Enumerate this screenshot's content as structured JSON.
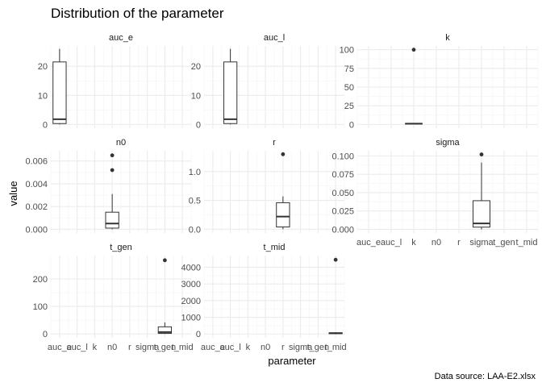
{
  "chart_data": {
    "type": "boxplot",
    "title": "Distribution of the parameter",
    "xlabel": "parameter",
    "ylabel": "value",
    "caption": "Data source: LAA-E2.xlsx",
    "categories": [
      "auc_e",
      "auc_l",
      "k",
      "n0",
      "r",
      "sigma",
      "t_gen",
      "t_mid"
    ],
    "grid": true,
    "facets": [
      {
        "name": "auc_e",
        "category": "auc_e",
        "ylim": [
          -1.3,
          27
        ],
        "yticks": [
          0,
          10,
          20
        ],
        "ytick_labels": [
          "0",
          "10",
          "20"
        ],
        "box": {
          "min": 0,
          "q1": 0.3,
          "median": 1.8,
          "q3": 21.5,
          "max": 26
        },
        "outliers": []
      },
      {
        "name": "auc_l",
        "category": "auc_l",
        "ylim": [
          -1.3,
          27
        ],
        "yticks": [
          0,
          10,
          20
        ],
        "ytick_labels": [
          "0",
          "10",
          "20"
        ],
        "box": {
          "min": 0,
          "q1": 0.3,
          "median": 1.8,
          "q3": 21.5,
          "max": 26
        },
        "outliers": []
      },
      {
        "name": "k",
        "category": "k",
        "ylim": [
          -5,
          105
        ],
        "yticks": [
          0,
          25,
          50,
          75,
          100
        ],
        "ytick_labels": [
          "0",
          "25",
          "50",
          "75",
          "100"
        ],
        "box": {
          "min": 0.5,
          "q1": 0.8,
          "median": 1,
          "q3": 1.2,
          "max": 1.5
        },
        "outliers": [
          100
        ]
      },
      {
        "name": "n0",
        "category": "n0",
        "ylim": [
          -0.00033,
          0.0069
        ],
        "yticks": [
          0,
          0.002,
          0.004,
          0.006
        ],
        "ytick_labels": [
          "0.000",
          "0.002",
          "0.004",
          "0.006"
        ],
        "box": {
          "min": 0,
          "q1": 0.0001,
          "median": 0.0005,
          "q3": 0.0015,
          "max": 0.0031
        },
        "outliers": [
          0.0052,
          0.0065
        ]
      },
      {
        "name": "r",
        "category": "r",
        "ylim": [
          -0.065,
          1.36
        ],
        "yticks": [
          0,
          0.5,
          1
        ],
        "ytick_labels": [
          "0.0",
          "0.5",
          "1.0"
        ],
        "box": {
          "min": 0,
          "q1": 0.04,
          "median": 0.22,
          "q3": 0.46,
          "max": 0.57
        },
        "outliers": [
          1.3
        ]
      },
      {
        "name": "sigma",
        "category": "sigma",
        "ylim": [
          -0.005,
          0.107
        ],
        "yticks": [
          0,
          0.025,
          0.05,
          0.075,
          0.1
        ],
        "ytick_labels": [
          "0.000",
          "0.025",
          "0.050",
          "0.075",
          "0.100"
        ],
        "box": {
          "min": 0,
          "q1": 0.003,
          "median": 0.008,
          "q3": 0.039,
          "max": 0.091
        },
        "outliers": [
          0.102
        ]
      },
      {
        "name": "t_gen",
        "category": "t_gen",
        "ylim": [
          -14,
          285
        ],
        "yticks": [
          0,
          100,
          200
        ],
        "ytick_labels": [
          "0",
          "100",
          "200"
        ],
        "box": {
          "min": 0,
          "q1": 2,
          "median": 7,
          "q3": 26,
          "max": 42
        },
        "outliers": [
          268
        ]
      },
      {
        "name": "t_mid",
        "category": "t_mid",
        "ylim": [
          -230,
          4700
        ],
        "yticks": [
          0,
          1000,
          2000,
          3000,
          4000
        ],
        "ytick_labels": [
          "0",
          "1000",
          "2000",
          "3000",
          "4000"
        ],
        "box": {
          "min": 0,
          "q1": 20,
          "median": 45,
          "q3": 70,
          "max": 100
        },
        "outliers": [
          4450
        ]
      }
    ]
  }
}
